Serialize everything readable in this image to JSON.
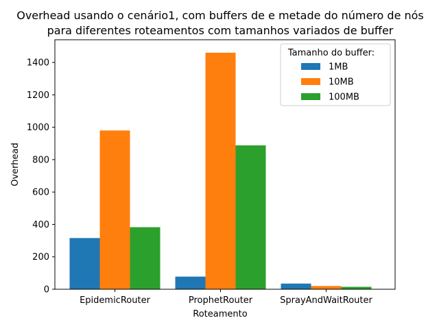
{
  "chart_data": {
    "type": "bar",
    "title": "Overhead usando o cenário1, com buffers de e metade do número de nós",
    "subtitle": "para diferentes roteamentos com tamanhos variados de buffer",
    "xlabel": "Roteamento",
    "ylabel": "Overhead",
    "categories": [
      "EpidemicRouter",
      "ProphetRouter",
      "SprayAndWaitRouter"
    ],
    "series": [
      {
        "name": "1MB",
        "color": "#1f77b4",
        "values": [
          316,
          78,
          35
        ]
      },
      {
        "name": "10MB",
        "color": "#ff7f0e",
        "values": [
          980,
          1460,
          20
        ]
      },
      {
        "name": "100MB",
        "color": "#2ca02c",
        "values": [
          383,
          888,
          15
        ]
      }
    ],
    "ylim": [
      0,
      1540
    ],
    "yticks": [
      0,
      200,
      400,
      600,
      800,
      1000,
      1200,
      1400
    ],
    "legend": {
      "title": "Tamanho do buffer:",
      "position": "top-right"
    },
    "grid": false
  }
}
